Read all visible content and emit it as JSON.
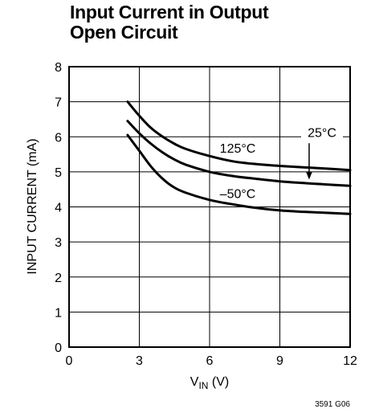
{
  "chart_data": {
    "type": "line",
    "title_lines": [
      "Input Current in Output",
      "Open Circuit"
    ],
    "xlabel_main": "V",
    "xlabel_sub": "IN",
    "xlabel_unit": " (V)",
    "ylabel": "INPUT CURRENT (mA)",
    "xlim": [
      0,
      12
    ],
    "ylim": [
      0,
      8
    ],
    "x_ticks": [
      0,
      3,
      6,
      9,
      12
    ],
    "y_ticks": [
      0,
      1,
      2,
      3,
      4,
      5,
      6,
      7,
      8
    ],
    "grid": true,
    "series": [
      {
        "name": "125°C",
        "x": [
          2.5,
          3,
          3.5,
          4,
          4.5,
          5,
          6,
          7,
          8,
          9,
          10,
          11,
          12
        ],
        "y": [
          7.0,
          6.6,
          6.25,
          6.0,
          5.8,
          5.65,
          5.45,
          5.3,
          5.22,
          5.17,
          5.13,
          5.09,
          5.05
        ]
      },
      {
        "name": "25°C",
        "x": [
          2.5,
          3,
          3.5,
          4,
          4.5,
          5,
          6,
          7,
          8,
          9,
          10,
          11,
          12
        ],
        "y": [
          6.45,
          6.1,
          5.8,
          5.55,
          5.35,
          5.2,
          5.0,
          4.88,
          4.8,
          4.73,
          4.68,
          4.64,
          4.6
        ]
      },
      {
        "name": "–50°C",
        "x": [
          2.5,
          3,
          3.5,
          4,
          4.5,
          5,
          6,
          7,
          8,
          9,
          10,
          11,
          12
        ],
        "y": [
          6.05,
          5.6,
          5.15,
          4.8,
          4.55,
          4.4,
          4.2,
          4.07,
          3.97,
          3.9,
          3.86,
          3.83,
          3.8
        ]
      }
    ],
    "annotations": [
      {
        "text": "125°C",
        "x": 7.2,
        "y": 5.55
      },
      {
        "text": "25°C",
        "x": 10.8,
        "y": 6.0
      },
      {
        "text": "–50°C",
        "x": 7.2,
        "y": 4.25
      }
    ]
  },
  "footnote": "3591 G06"
}
